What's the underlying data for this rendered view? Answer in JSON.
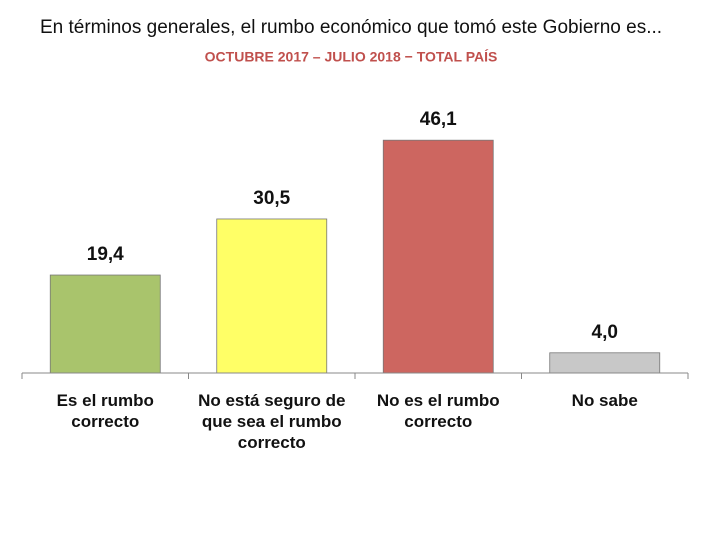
{
  "chart_data": {
    "type": "bar",
    "title": "En términos generales, el rumbo económico que tomó este Gobierno es...",
    "subtitle": "OCTUBRE 2017 – JULIO 2018 − TOTAL PAÍS",
    "categories": [
      "Es el rumbo correcto",
      "No está seguro de que sea el rumbo correcto",
      "No es el rumbo correcto",
      "No sabe"
    ],
    "values": [
      19.4,
      30.5,
      46.1,
      4.0
    ],
    "value_labels": [
      "19,4",
      "30,5",
      "46,1",
      "4,0"
    ],
    "colors": [
      "#a9c46c",
      "#ffff66",
      "#cd6660",
      "#c8c8c8"
    ],
    "ylim": [
      0,
      50
    ]
  }
}
